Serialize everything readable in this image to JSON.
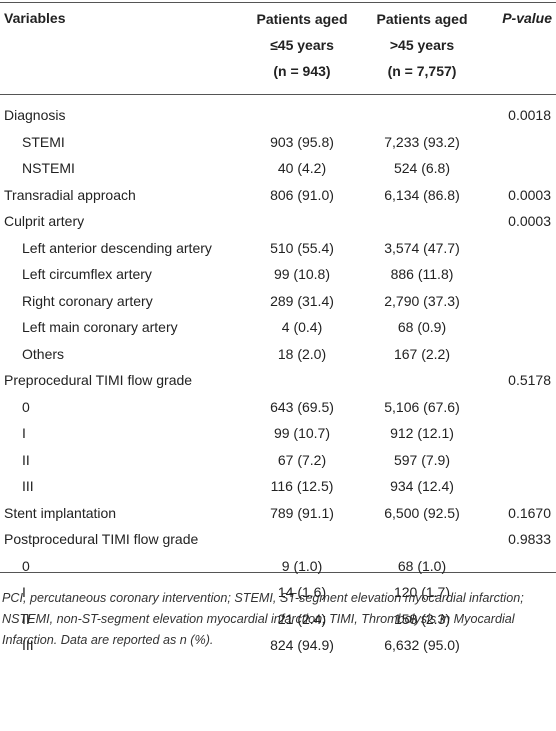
{
  "table": {
    "header": {
      "variables": "Variables",
      "col1": [
        "Patients aged",
        "≤45 years",
        "(n = 943)"
      ],
      "col2": [
        "Patients aged",
        ">45 years",
        "(n = 7,757)"
      ],
      "p": "P-value"
    },
    "groups": [
      {
        "row": [
          "Diagnosis",
          null,
          null,
          "0.0018"
        ],
        "items": [
          [
            "STEMI",
            "903 (95.8)",
            "7,233 (93.2)"
          ],
          [
            "NSTEMI",
            "40 (4.2)",
            "524 (6.8)"
          ]
        ]
      },
      {
        "row": [
          "Transradial approach",
          "806 (91.0)",
          "6,134 (86.8)",
          "0.0003"
        ],
        "items": []
      },
      {
        "row": [
          "Culprit artery",
          null,
          null,
          "0.0003"
        ],
        "items": [
          [
            "Left anterior descending artery",
            "510 (55.4)",
            "3,574 (47.7)"
          ],
          [
            "Left circumflex artery",
            "99 (10.8)",
            "886 (11.8)"
          ],
          [
            "Right coronary artery",
            "289 (31.4)",
            "2,790 (37.3)"
          ],
          [
            "Left main coronary artery",
            "4 (0.4)",
            "68 (0.9)"
          ],
          [
            "Others",
            "18 (2.0)",
            "167 (2.2)"
          ]
        ]
      },
      {
        "row": [
          "Preprocedural TIMI flow grade",
          null,
          null,
          "0.5178"
        ],
        "items": [
          [
            "0",
            "643 (69.5)",
            "5,106 (67.6)"
          ],
          [
            "I",
            "99 (10.7)",
            "912 (12.1)"
          ],
          [
            "II",
            "67 (7.2)",
            "597 (7.9)"
          ],
          [
            "III",
            "116 (12.5)",
            "934 (12.4)"
          ]
        ]
      },
      {
        "row": [
          "Stent implantation",
          "789 (91.1)",
          "6,500 (92.5)",
          "0.1670"
        ],
        "items": []
      },
      {
        "row": [
          "Postprocedural TIMI flow grade",
          null,
          null,
          "0.9833"
        ],
        "items": [
          [
            "0",
            "9 (1.0)",
            "68 (1.0)"
          ],
          [
            "I",
            "14 (1.6)",
            "120 (1.7)"
          ],
          [
            "II",
            "21 (2.4)",
            "158 (2.3)"
          ],
          [
            "III",
            "824 (94.9)",
            "6,632 (95.0)"
          ]
        ]
      }
    ],
    "footnote": "PCI, percutaneous coronary intervention; STEMI, ST-segment elevation myocardial infarction; NSTEMI, non-ST-segment elevation myocardial infarction; TIMI, Thrombolysis In Myocardial Infarction. Data are reported as n (%)."
  }
}
